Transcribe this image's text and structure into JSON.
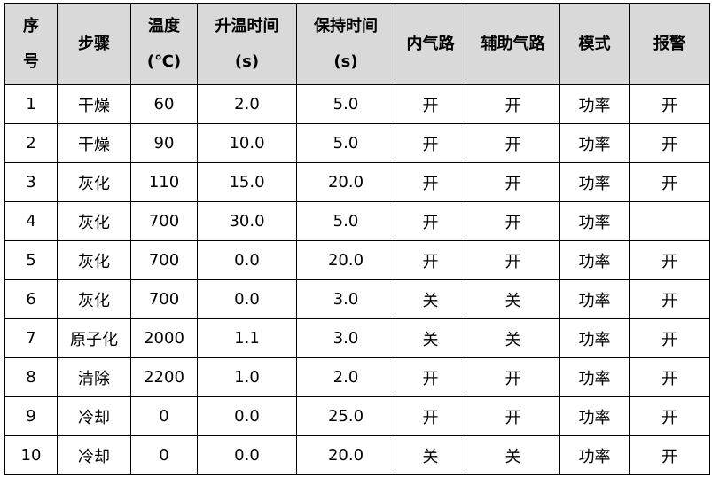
{
  "header": {
    "index": [
      "序",
      "号"
    ],
    "step": "步骤",
    "temp": [
      "温度",
      "(℃)"
    ],
    "ramp": [
      "升温时间",
      "(s)"
    ],
    "hold": [
      "保持时间",
      "(s)"
    ],
    "inner_gas": "内气路",
    "aux_gas": "辅助气路",
    "mode": "模式",
    "alarm": "报警"
  },
  "rows": [
    [
      "1",
      "干燥",
      "60",
      "2.0",
      "5.0",
      "开",
      "开",
      "功率",
      "开"
    ],
    [
      "2",
      "干燥",
      "90",
      "10.0",
      "5.0",
      "开",
      "开",
      "功率",
      "开"
    ],
    [
      "3",
      "灰化",
      "110",
      "15.0",
      "20.0",
      "开",
      "开",
      "功率",
      "开"
    ],
    [
      "4",
      "灰化",
      "700",
      "30.0",
      "5.0",
      "开",
      "开",
      "功率",
      ""
    ],
    [
      "5",
      "灰化",
      "700",
      "0.0",
      "20.0",
      "开",
      "开",
      "功率",
      "开"
    ],
    [
      "6",
      "灰化",
      "700",
      "0.0",
      "3.0",
      "关",
      "关",
      "功率",
      "开"
    ],
    [
      "7",
      "原子化",
      "2000",
      "1.1",
      "3.0",
      "关",
      "关",
      "功率",
      "开"
    ],
    [
      "8",
      "清除",
      "2200",
      "1.0",
      "2.0",
      "开",
      "开",
      "功率",
      "开"
    ],
    [
      "9",
      "冷却",
      "0",
      "0.0",
      "25.0",
      "开",
      "开",
      "功率",
      "开"
    ],
    [
      "10",
      "冷却",
      "0",
      "0.0",
      "20.0",
      "关",
      "关",
      "功率",
      "开"
    ]
  ]
}
